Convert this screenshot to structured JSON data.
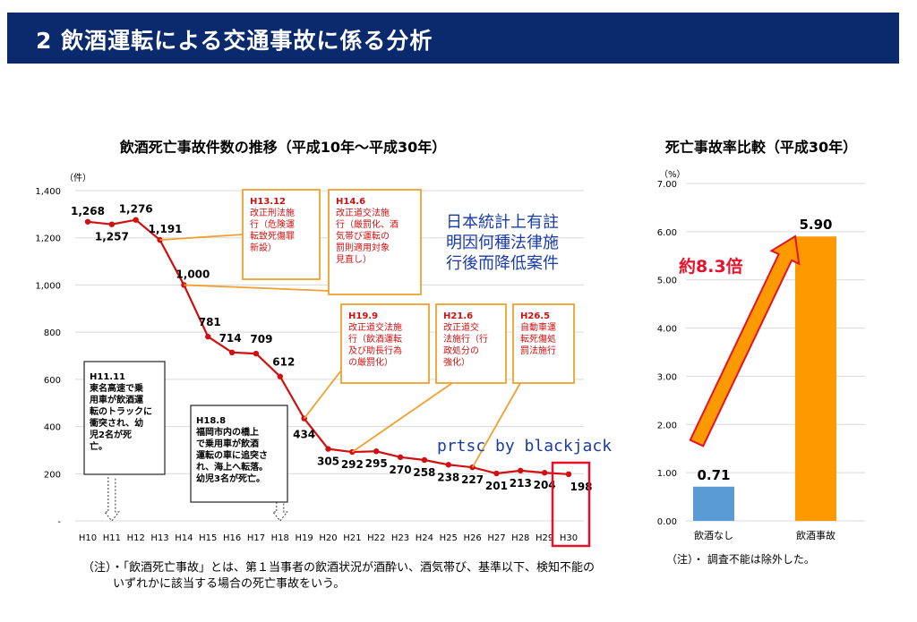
{
  "header": {
    "title": "2 飲酒運転による交通事故に係る分析"
  },
  "watermark": {
    "chinese_lines": [
      "日本統計上有註",
      "明因何種法律施",
      "行後而降低案件"
    ],
    "signature": "prtsc by blackjack"
  },
  "chart_data": [
    {
      "type": "line",
      "title": "飲酒死亡事故件数の推移（平成10年～平成30年）",
      "unit_label": "（件）",
      "categories": [
        "H10",
        "H11",
        "H12",
        "H13",
        "H14",
        "H15",
        "H16",
        "H17",
        "H18",
        "H19",
        "H20",
        "H21",
        "H22",
        "H23",
        "H24",
        "H25",
        "H26",
        "H27",
        "H28",
        "H29",
        "H30"
      ],
      "values": [
        1268,
        1257,
        1276,
        1191,
        1000,
        781,
        714,
        709,
        612,
        434,
        305,
        292,
        295,
        270,
        258,
        238,
        227,
        201,
        213,
        204,
        198
      ],
      "value_labels": [
        "1,268",
        "1,257",
        "1,276",
        "1,191",
        "1,000",
        "781",
        "714",
        "709",
        "612",
        "434",
        "305",
        "292",
        "295",
        "270",
        "258",
        "238",
        "227",
        "201",
        "213",
        "204",
        "198"
      ],
      "ylim": [
        0,
        1400
      ],
      "yticks": [
        0,
        200,
        400,
        600,
        800,
        1000,
        1200,
        1400
      ],
      "ytick_labels": [
        "-",
        "200",
        "400",
        "600",
        "800",
        "1,000",
        "1,200",
        "1,400"
      ],
      "grid": true,
      "line_color": "#d01010",
      "annotations": [
        {
          "id": "h13-12",
          "lines": [
            "H13.12",
            "改正刑法施",
            "行（危険運",
            "転致死傷罪",
            "新設）"
          ],
          "target": "H13"
        },
        {
          "id": "h14-6",
          "lines": [
            "H14.6",
            "改正道交法施",
            "行（厳罰化、酒",
            "気帯び運転の",
            "罰則適用対象",
            "見直し）"
          ],
          "target": "H14"
        },
        {
          "id": "h19-9",
          "lines": [
            "H19.9",
            "改正道交法施",
            "行（飲酒運転",
            "及び助長行為",
            "の厳罰化）"
          ],
          "target": "H19"
        },
        {
          "id": "h21-6",
          "lines": [
            "H21.6",
            "改正道交",
            "法施行（行",
            "政処分の",
            "強化）"
          ],
          "target": "H21"
        },
        {
          "id": "h26-5",
          "lines": [
            "H26.5",
            "自動車運",
            "転死傷処",
            "罰法施行"
          ],
          "target": "H26"
        }
      ],
      "events": [
        {
          "id": "h11-11",
          "lines": [
            "H11.11",
            "東名高速で乗",
            "用車が飲酒運",
            "転のトラックに",
            "衝突され、幼",
            "児2名が死",
            "亡。"
          ],
          "target": "H11"
        },
        {
          "id": "h18-8",
          "lines": [
            "H18.8",
            "福岡市内の橋上",
            "で乗用車が飲酒",
            "運転の車に追突さ",
            "れ、海上へ転落。",
            "幼児3名が死亡。"
          ],
          "target": "H18"
        }
      ],
      "highlight": "H30"
    },
    {
      "type": "bar",
      "title": "死亡事故率比較（平成30年）",
      "unit_label": "（%）",
      "categories": [
        "飲酒なし",
        "飲酒事故"
      ],
      "values": [
        0.71,
        5.9
      ],
      "value_labels": [
        "0.71",
        "5.90"
      ],
      "colors": [
        "#5b9bd5",
        "#ff9900"
      ],
      "ylim": [
        0,
        7
      ],
      "yticks": [
        0,
        1,
        2,
        3,
        4,
        5,
        6,
        7
      ],
      "ytick_labels": [
        "0.00",
        "1.00",
        "2.00",
        "3.00",
        "4.00",
        "5.00",
        "6.00",
        "7.00"
      ],
      "grid": true,
      "ratio_label": "約8.3倍"
    }
  ],
  "notes": {
    "line_note": [
      "（注）・「飲酒死亡事故」とは、第１当事者の飲酒状況が酒酔い、酒気帯び、基準以下、検知不能の",
      "いずれかに該当する場合の死亡事故をいう。"
    ],
    "bar_note": "（注）・ 調査不能は除外した。"
  }
}
